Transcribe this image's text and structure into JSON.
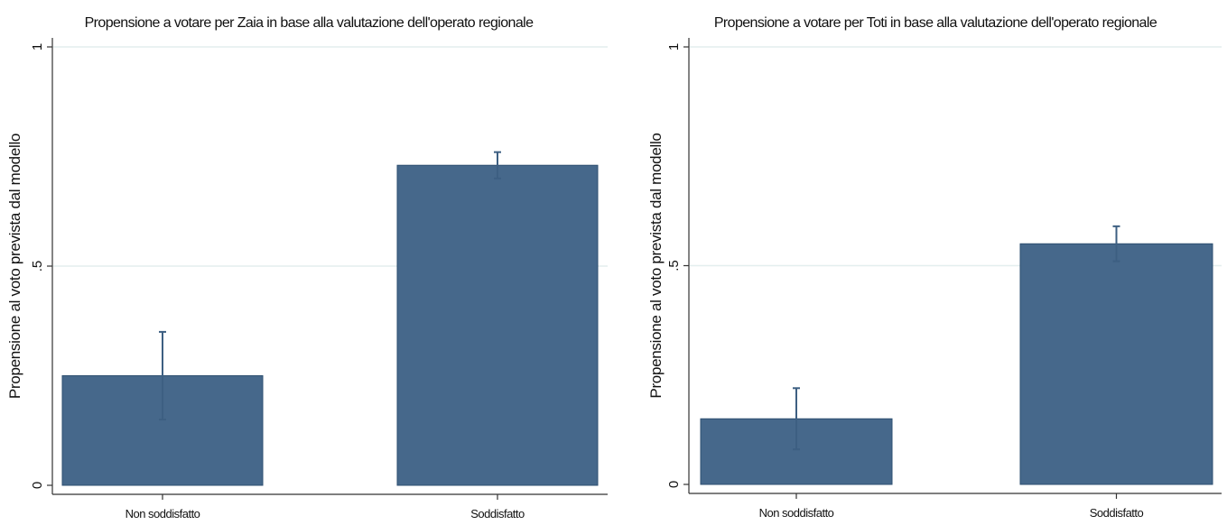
{
  "chart_data": [
    {
      "type": "bar",
      "title": "Propensione a votare per Zaia in base alla valutazione dell'operato regionale",
      "ylabel": "Propensione al voto prevista dal modello",
      "xlabel": "",
      "categories": [
        "Non soddisfatto",
        "Soddisfatto"
      ],
      "values": [
        0.25,
        0.73
      ],
      "ci_lower": [
        0.15,
        0.7
      ],
      "ci_upper": [
        0.35,
        0.76
      ],
      "ylim": [
        0,
        1
      ],
      "yticks": [
        0,
        0.5,
        1
      ],
      "ytick_labels": [
        "0",
        ".5",
        "1"
      ],
      "grid": true
    },
    {
      "type": "bar",
      "title": "Propensione a votare per Toti in base alla valutazione dell'operato regionale",
      "ylabel": "Propensione al voto prevista dal modello",
      "xlabel": "",
      "categories": [
        "Non soddisfatto",
        "Soddisfatto"
      ],
      "values": [
        0.15,
        0.55
      ],
      "ci_lower": [
        0.08,
        0.51
      ],
      "ci_upper": [
        0.22,
        0.59
      ],
      "ylim": [
        0,
        1
      ],
      "yticks": [
        0,
        0.5,
        1
      ],
      "ytick_labels": [
        "0",
        ".5",
        "1"
      ],
      "grid": true
    }
  ],
  "colors": {
    "bar": "#46688b",
    "error_bar": "#3d5f82",
    "grid": "#e3eeee",
    "axis": "#333333"
  }
}
